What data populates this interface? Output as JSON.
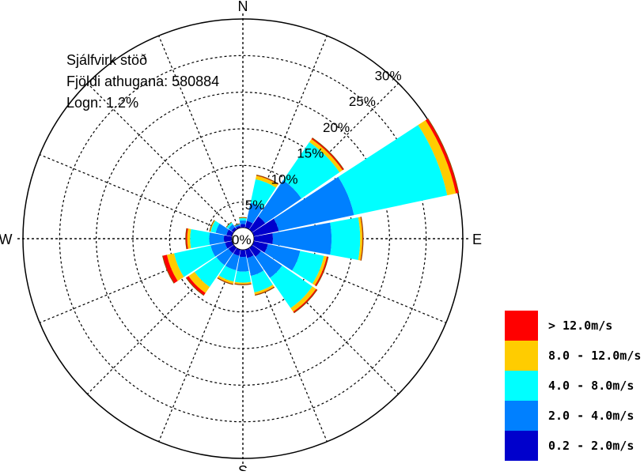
{
  "chart_data": {
    "type": "windrose",
    "notes": {
      "station": "Sjálfvirk stöð",
      "observations": "Fjöldi athugana: 580884",
      "calm": "Logn: 1.2%"
    },
    "directions": [
      "N",
      "E",
      "S",
      "W"
    ],
    "ring_labels": [
      "0%",
      "5%",
      "10%",
      "15%",
      "20%",
      "25%",
      "30%"
    ],
    "rmax": 30,
    "sector_centers_deg": [
      0,
      22.5,
      45,
      67.5,
      90,
      112.5,
      135,
      157.5,
      180,
      202.5,
      225,
      247.5,
      270,
      292.5,
      315,
      337.5
    ],
    "series": [
      {
        "name": "0.2 - 2.0m/s",
        "color": "#0000cc",
        "values": [
          0.5,
          1.0,
          2.2,
          3.5,
          2.6,
          2.0,
          1.5,
          1.2,
          1.0,
          0.9,
          0.9,
          1.0,
          1.1,
          0.8,
          0.4,
          0.3
        ]
      },
      {
        "name": "2.0 - 4.0m/s",
        "color": "#0080ff",
        "values": [
          0.5,
          2.5,
          6.0,
          10.5,
          8.0,
          4.5,
          3.5,
          2.5,
          2.0,
          2.0,
          2.0,
          2.0,
          2.0,
          1.5,
          0.5,
          0.2
        ]
      },
      {
        "name": "4.0 - 8.0m/s",
        "color": "#00ffff",
        "values": [
          0.3,
          3.3,
          6.3,
          13.0,
          3.9,
          3.3,
          5.0,
          2.3,
          1.5,
          1.6,
          3.6,
          5.1,
          2.6,
          0.7,
          0.3,
          0.1
        ]
      },
      {
        "name": "8.0 - 12.0m/s",
        "color": "#ffcc00",
        "values": [
          0.1,
          0.5,
          0.5,
          1.2,
          0.3,
          0.4,
          0.6,
          0.3,
          0.2,
          0.3,
          1.0,
          1.0,
          0.4,
          0.1,
          0.05,
          0.0
        ]
      },
      {
        "name": "> 12.0m/s",
        "color": "#ff0000",
        "values": [
          0.0,
          0.1,
          0.2,
          0.4,
          0.1,
          0.2,
          0.2,
          0.1,
          0.1,
          0.1,
          0.4,
          0.6,
          0.2,
          0.05,
          0.0,
          0.0
        ]
      }
    ],
    "grid": true,
    "legend_position": "bottom-right"
  }
}
